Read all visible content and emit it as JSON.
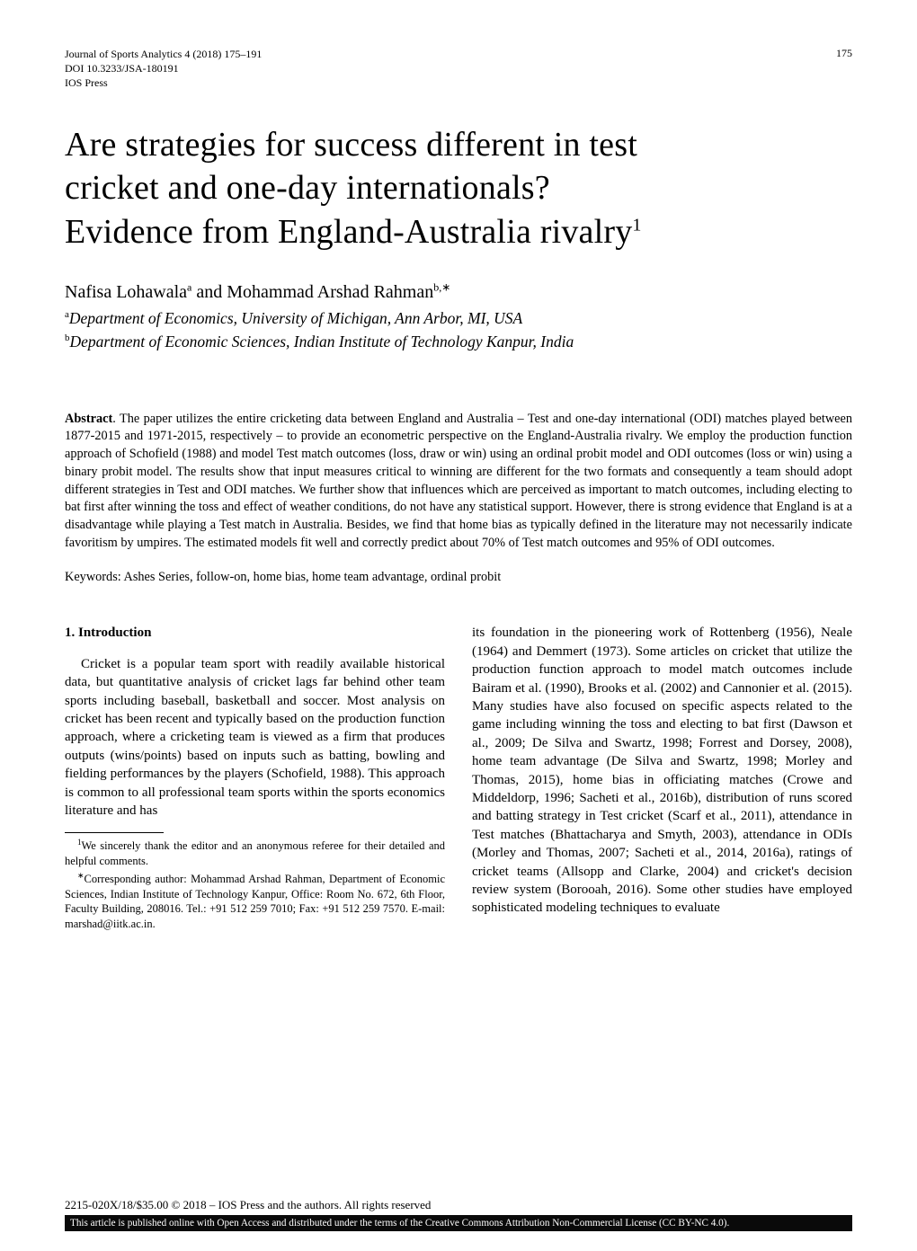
{
  "header": {
    "journal_line": "Journal of Sports Analytics 4 (2018) 175–191",
    "doi_line": "DOI 10.3233/JSA-180191",
    "press_line": "IOS Press",
    "page_number": "175"
  },
  "title": {
    "line1": "Are strategies for success different in test",
    "line2": "cricket and one-day internationals?",
    "line3_pre": "Evidence from England-Australia rivalry",
    "sup": "1"
  },
  "authors": {
    "text_pre": "Nafisa Lohawala",
    "sup_a": "a",
    "and": " and Mohammad Arshad Rahman",
    "sup_b": "b,",
    "star": "∗"
  },
  "affiliations": [
    {
      "sup": "a",
      "text": "Department of Economics, University of Michigan, Ann Arbor, MI, USA"
    },
    {
      "sup": "b",
      "text": "Department of Economic Sciences, Indian Institute of Technology Kanpur, India"
    }
  ],
  "abstract": {
    "label": "Abstract",
    "text": ". The paper utilizes the entire cricketing data between England and Australia – Test and one-day international (ODI) matches played between 1877-2015 and 1971-2015, respectively – to provide an econometric perspective on the England-Australia rivalry. We employ the production function approach of Schofield (1988) and model Test match outcomes (loss, draw or win) using an ordinal probit model and ODI outcomes (loss or win) using a binary probit model. The results show that input measures critical to winning are different for the two formats and consequently a team should adopt different strategies in Test and ODI matches. We further show that influences which are perceived as important to match outcomes, including electing to bat first after winning the toss and effect of weather conditions, do not have any statistical support. However, there is strong evidence that England is at a disadvantage while playing a Test match in Australia. Besides, we find that home bias as typically defined in the literature may not necessarily indicate favoritism by umpires. The estimated models fit well and correctly predict about 70% of Test match outcomes and 95% of ODI outcomes."
  },
  "keywords": "Keywords: Ashes Series, follow-on, home bias, home team advantage, ordinal probit",
  "section1": {
    "heading": "1.  Introduction",
    "left_para": "Cricket is a popular team sport with readily available historical data, but quantitative analysis of cricket lags far behind other team sports including baseball, basketball and soccer. Most analysis on cricket has been recent and typically based on the production function approach, where a cricketing team is viewed as a firm that produces outputs (wins/points) based on inputs such as batting, bowling and fielding performances by the players (Schofield, 1988). This approach is common to all professional team sports within the sports economics literature and has",
    "right_para": "its foundation in the pioneering work of Rottenberg (1956), Neale (1964) and Demmert (1973). Some articles on cricket that utilize the production function approach to model match outcomes include Bairam et al. (1990), Brooks et al. (2002) and Cannonier et al. (2015). Many studies have also focused on specific aspects related to the game including winning the toss and electing to bat first (Dawson et al., 2009; De Silva and Swartz, 1998; Forrest and Dorsey, 2008), home team advantage (De Silva and Swartz, 1998; Morley and Thomas, 2015), home bias in officiating matches (Crowe and Middeldorp, 1996; Sacheti et al., 2016b), distribution of runs scored and batting strategy in Test cricket (Scarf et al., 2011), attendance in Test matches (Bhattacharya and Smyth, 2003), attendance in ODIs (Morley and Thomas, 2007; Sacheti et al., 2014, 2016a), ratings of cricket teams (Allsopp and Clarke, 2004) and cricket's decision review system (Borooah, 2016). Some other studies have employed sophisticated modeling techniques to evaluate"
  },
  "footnotes": {
    "fn1_sup": "1",
    "fn1": "We sincerely thank the editor and an anonymous referee for their detailed and helpful comments.",
    "fn2_sup": "∗",
    "fn2": "Corresponding author: Mohammad Arshad Rahman, Department of Economic Sciences, Indian Institute of Technology Kanpur, Office: Room No. 672, 6th Floor, Faculty Building, 208016. Tel.: +91 512 259 7010; Fax: +91 512 259 7570. E-mail: marshad@iitk.ac.in."
  },
  "bottom": {
    "copyright": "2215-020X/18/$35.00 © 2018 – IOS Press and the authors. All rights reserved",
    "license": "This article is published online with Open Access and distributed under the terms of the Creative Commons Attribution Non-Commercial License (CC BY-NC 4.0)."
  }
}
